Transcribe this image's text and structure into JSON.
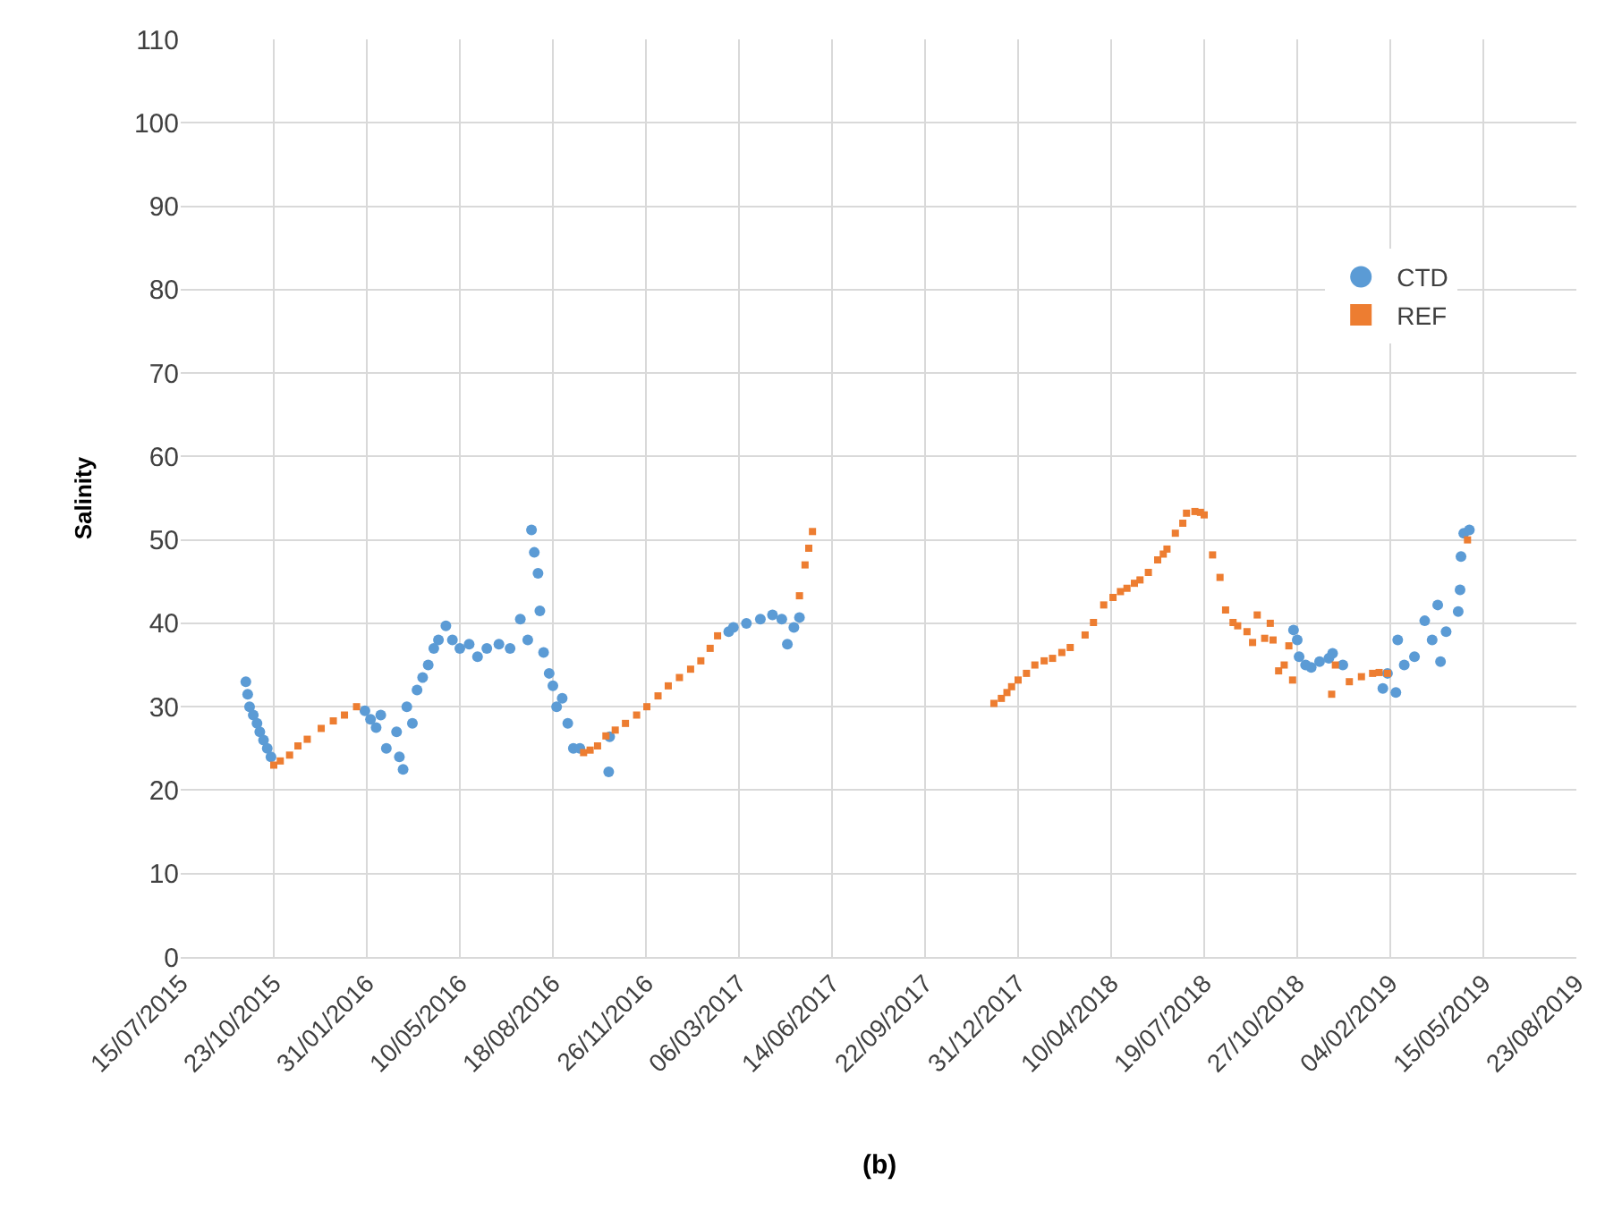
{
  "chart_data": {
    "type": "scatter",
    "ylabel": "Salinity",
    "annotations": [
      "(b)"
    ],
    "grid": true,
    "legend": "right",
    "xlim": [
      "2015-07-15",
      "2019-08-23"
    ],
    "xticks": [
      {
        "value": "2015-07-15",
        "label": "15/07/2015"
      },
      {
        "value": "2015-10-23",
        "label": "23/10/2015"
      },
      {
        "value": "2016-01-31",
        "label": "31/01/2016"
      },
      {
        "value": "2016-05-10",
        "label": "10/05/2016"
      },
      {
        "value": "2016-08-18",
        "label": "18/08/2016"
      },
      {
        "value": "2016-11-26",
        "label": "26/11/2016"
      },
      {
        "value": "2017-03-06",
        "label": "06/03/2017"
      },
      {
        "value": "2017-06-14",
        "label": "14/06/2017"
      },
      {
        "value": "2017-09-22",
        "label": "22/09/2017"
      },
      {
        "value": "2017-12-31",
        "label": "31/12/2017"
      },
      {
        "value": "2018-04-10",
        "label": "10/04/2018"
      },
      {
        "value": "2018-07-19",
        "label": "19/07/2018"
      },
      {
        "value": "2018-10-27",
        "label": "27/10/2018"
      },
      {
        "value": "2019-02-04",
        "label": "04/02/2019"
      },
      {
        "value": "2019-05-15",
        "label": "15/05/2019"
      },
      {
        "value": "2019-08-23",
        "label": "23/08/2019"
      }
    ],
    "ylim": [
      0,
      110
    ],
    "yticks": [
      0,
      10,
      20,
      30,
      40,
      50,
      60,
      70,
      80,
      90,
      100,
      110
    ],
    "series": [
      {
        "name": "CTD",
        "color": "#5b9bd5",
        "marker": "circle",
        "x": [
          "2015-09-23",
          "2015-09-25",
          "2015-09-27",
          "2015-10-01",
          "2015-10-05",
          "2015-10-08",
          "2015-10-12",
          "2015-10-16",
          "2015-10-20",
          "2016-01-29",
          "2016-02-04",
          "2016-02-10",
          "2016-02-15",
          "2016-02-21",
          "2016-03-03",
          "2016-03-06",
          "2016-03-10",
          "2016-03-14",
          "2016-03-20",
          "2016-03-25",
          "2016-03-31",
          "2016-04-06",
          "2016-04-12",
          "2016-04-17",
          "2016-04-25",
          "2016-05-02",
          "2016-05-10",
          "2016-05-20",
          "2016-05-29",
          "2016-06-08",
          "2016-06-21",
          "2016-07-03",
          "2016-07-14",
          "2016-07-22",
          "2016-07-26",
          "2016-07-29",
          "2016-08-02",
          "2016-08-04",
          "2016-08-08",
          "2016-08-14",
          "2016-08-18",
          "2016-08-22",
          "2016-08-28",
          "2016-09-03",
          "2016-09-09",
          "2016-09-16",
          "2016-10-17",
          "2016-10-18",
          "2017-02-23",
          "2017-02-28",
          "2017-03-14",
          "2017-03-29",
          "2017-04-11",
          "2017-04-21",
          "2017-04-27",
          "2017-05-04",
          "2017-05-10",
          "2018-10-23",
          "2018-10-27",
          "2018-10-29",
          "2018-11-05",
          "2018-11-11",
          "2018-11-20",
          "2018-11-30",
          "2018-12-04",
          "2018-12-15",
          "2019-01-27",
          "2019-02-01",
          "2019-02-10",
          "2019-02-12",
          "2019-02-19",
          "2019-03-02",
          "2019-03-13",
          "2019-03-21",
          "2019-03-27",
          "2019-03-30",
          "2019-04-05",
          "2019-04-18",
          "2019-04-20",
          "2019-04-21",
          "2019-04-24",
          "2019-04-30"
        ],
        "values": [
          33,
          31.5,
          30,
          29,
          28,
          27,
          26,
          25,
          24,
          29.5,
          28.5,
          27.5,
          29,
          25,
          27,
          24,
          22.5,
          30,
          28,
          32,
          33.5,
          35,
          37,
          38,
          39.7,
          38,
          37,
          37.5,
          36,
          37,
          37.5,
          37,
          40.5,
          38,
          51.2,
          48.5,
          46,
          41.5,
          36.5,
          34,
          32.5,
          30,
          31,
          28,
          25,
          25,
          22.2,
          26.4,
          39,
          39.5,
          40,
          40.5,
          41,
          40.5,
          37.5,
          39.5,
          40.7,
          39.2,
          38,
          36,
          35,
          34.7,
          35.4,
          35.8,
          36.4,
          35,
          32.2,
          34,
          31.7,
          38,
          35,
          36,
          40.3,
          38,
          42.2,
          35.4,
          39,
          41.4,
          44,
          48,
          50.8,
          51.2
        ]
      },
      {
        "name": "REF",
        "color": "#ed7d31",
        "marker": "square",
        "x": [
          "2015-10-23",
          "2015-10-30",
          "2015-11-09",
          "2015-11-18",
          "2015-11-28",
          "2015-12-13",
          "2015-12-26",
          "2016-01-07",
          "2016-01-20",
          "2016-09-20",
          "2016-09-27",
          "2016-10-05",
          "2016-10-14",
          "2016-10-24",
          "2016-11-04",
          "2016-11-16",
          "2016-11-27",
          "2016-12-09",
          "2016-12-20",
          "2017-01-01",
          "2017-01-13",
          "2017-01-24",
          "2017-02-03",
          "2017-02-11",
          "2017-05-10",
          "2017-05-16",
          "2017-05-20",
          "2017-05-24",
          "2017-12-05",
          "2017-12-13",
          "2017-12-19",
          "2017-12-24",
          "2017-12-31",
          "2018-01-09",
          "2018-01-18",
          "2018-01-28",
          "2018-02-06",
          "2018-02-16",
          "2018-02-25",
          "2018-03-13",
          "2018-03-22",
          "2018-04-02",
          "2018-04-12",
          "2018-04-20",
          "2018-04-27",
          "2018-05-05",
          "2018-05-11",
          "2018-05-20",
          "2018-05-30",
          "2018-06-05",
          "2018-06-09",
          "2018-06-18",
          "2018-06-26",
          "2018-06-30",
          "2018-07-09",
          "2018-07-15",
          "2018-07-19",
          "2018-07-28",
          "2018-08-05",
          "2018-08-11",
          "2018-08-19",
          "2018-08-24",
          "2018-09-03",
          "2018-09-09",
          "2018-09-14",
          "2018-09-22",
          "2018-09-28",
          "2018-10-01",
          "2018-10-07",
          "2018-10-13",
          "2018-10-18",
          "2018-10-22",
          "2018-12-03",
          "2018-12-07",
          "2018-12-22",
          "2019-01-04",
          "2019-01-16",
          "2019-01-23",
          "2019-02-01",
          "2019-04-28"
        ],
        "values": [
          23,
          23.5,
          24.2,
          25.3,
          26.1,
          27.4,
          28.3,
          29,
          30,
          24.5,
          24.8,
          25.3,
          26.5,
          27.2,
          28,
          29,
          30,
          31.3,
          32.5,
          33.5,
          34.5,
          35.5,
          37,
          38.5,
          43.3,
          47,
          49,
          51,
          30.4,
          31,
          31.7,
          32.4,
          33.2,
          34,
          35,
          35.5,
          35.8,
          36.5,
          37.1,
          38.6,
          40.1,
          42.2,
          43.1,
          43.8,
          44.2,
          44.8,
          45.2,
          46.1,
          47.6,
          48.3,
          48.9,
          50.8,
          52,
          53.2,
          53.4,
          53.3,
          53,
          48.2,
          45.5,
          41.6,
          40.1,
          39.7,
          39,
          37.7,
          41,
          38.2,
          40,
          38,
          34.3,
          35,
          37.3,
          33.2,
          31.5,
          35,
          33,
          33.6,
          34,
          34.1,
          34,
          50
        ]
      }
    ]
  }
}
